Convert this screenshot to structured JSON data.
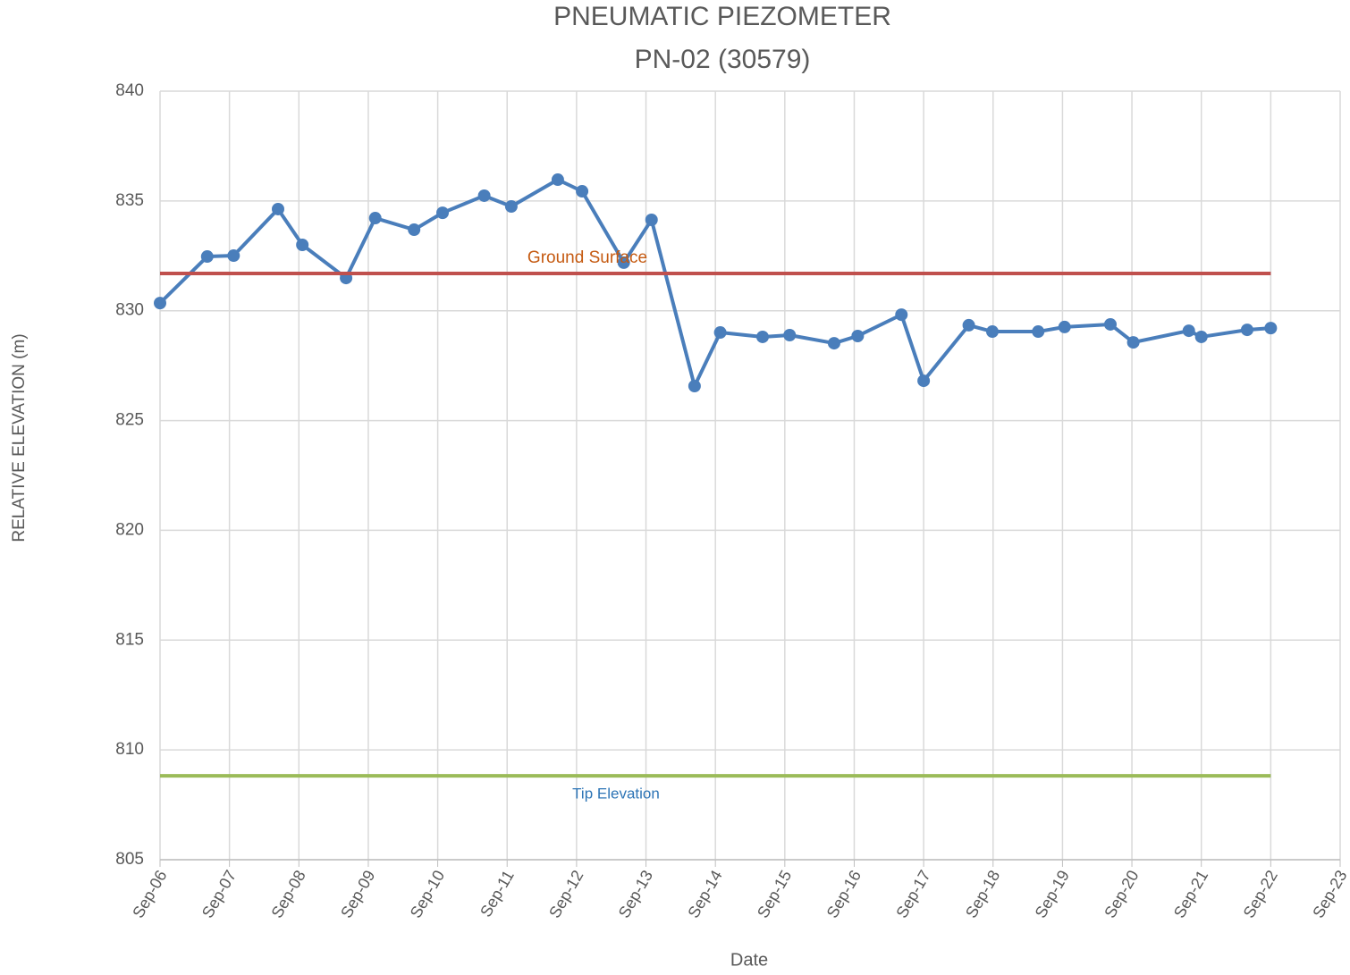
{
  "chart_data": {
    "type": "line",
    "title": [
      "PNEUMATIC PIEZOMETER",
      "PN-02 (30579)"
    ],
    "x_label": "Date",
    "y_label": "RELATIVE ELEVATION (m)",
    "xlim": [
      6,
      23
    ],
    "xticks": [
      {
        "value": 6,
        "label": "Sep-06"
      },
      {
        "value": 7,
        "label": "Sep-07"
      },
      {
        "value": 8,
        "label": "Sep-08"
      },
      {
        "value": 9,
        "label": "Sep-09"
      },
      {
        "value": 10,
        "label": "Sep-10"
      },
      {
        "value": 11,
        "label": "Sep-11"
      },
      {
        "value": 12,
        "label": "Sep-12"
      },
      {
        "value": 13,
        "label": "Sep-13"
      },
      {
        "value": 14,
        "label": "Sep-14"
      },
      {
        "value": 15,
        "label": "Sep-15"
      },
      {
        "value": 16,
        "label": "Sep-16"
      },
      {
        "value": 17,
        "label": "Sep-17"
      },
      {
        "value": 18,
        "label": "Sep-18"
      },
      {
        "value": 19,
        "label": "Sep-19"
      },
      {
        "value": 20,
        "label": "Sep-20"
      },
      {
        "value": 21,
        "label": "Sep-21"
      },
      {
        "value": 22,
        "label": "Sep-22"
      },
      {
        "value": 23,
        "label": "Sep-23"
      }
    ],
    "ylim": [
      805,
      840
    ],
    "yticks": [
      805,
      810,
      815,
      820,
      825,
      830,
      835,
      840
    ],
    "grid": true,
    "series": [
      {
        "color": "#4a7ebb",
        "markers": true,
        "x": [
          6.0,
          6.68,
          7.06,
          7.7,
          8.05,
          8.68,
          9.1,
          9.66,
          10.07,
          10.67,
          11.06,
          11.73,
          12.08,
          12.68,
          13.08,
          13.7,
          14.07,
          14.68,
          15.07,
          15.71,
          16.05,
          16.68,
          17.0,
          17.65,
          17.99,
          18.65,
          19.03,
          19.69,
          20.02,
          20.82,
          21.0,
          21.66,
          22.0
        ],
        "values": [
          830.35,
          832.47,
          832.51,
          834.63,
          833.0,
          831.49,
          834.22,
          833.69,
          834.46,
          835.24,
          834.75,
          835.97,
          835.44,
          832.19,
          834.14,
          826.57,
          829.01,
          828.81,
          828.89,
          828.52,
          828.85,
          829.82,
          826.81,
          829.34,
          829.05,
          829.05,
          829.26,
          829.38,
          828.56,
          829.09,
          828.81,
          829.13,
          829.21
        ]
      },
      {
        "name": "Ground Surface",
        "color": "#c0504d",
        "label_color": "#c55a11",
        "markers": false,
        "x": [
          6,
          22
        ],
        "values": [
          831.7,
          831.7
        ]
      },
      {
        "name": "Tip Elevation",
        "color": "#9bbb59",
        "label_color": "#2e75b6",
        "markers": false,
        "x": [
          6,
          22
        ],
        "values": [
          808.82,
          808.82
        ]
      }
    ]
  }
}
